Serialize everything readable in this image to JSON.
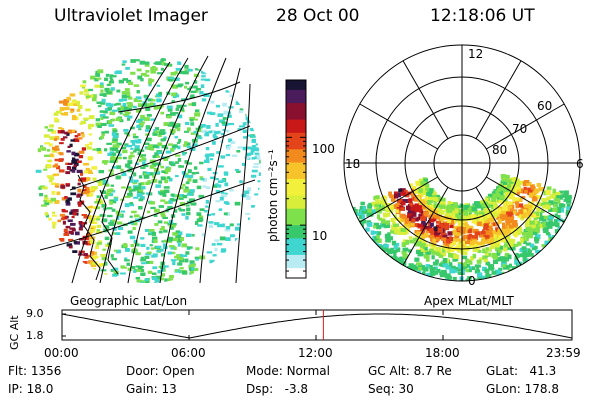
{
  "header": {
    "instrument": "Ultraviolet Imager",
    "date": "28 Oct 00",
    "time": "12:18:06 UT"
  },
  "colorbar": {
    "unit_label": "photon cm⁻²s⁻¹",
    "ticks": [
      {
        "label": "100",
        "value": 100
      },
      {
        "label": "10",
        "value": 10
      }
    ],
    "colors": [
      "#ffffff",
      "#b8ecf2",
      "#3fd6d0",
      "#36c86a",
      "#7ee04a",
      "#d8ee3a",
      "#f2f03a",
      "#f6c32a",
      "#f28a1e",
      "#e3441a",
      "#c81818",
      "#8a1030",
      "#4a1c5c",
      "#181434"
    ]
  },
  "panels": {
    "left_label": "Geographic Lat/Lon",
    "right_label": "Apex MLat/MLT"
  },
  "polar": {
    "mlt_labels": {
      "top": "12",
      "left": "18",
      "right": "6",
      "bottom": "0"
    },
    "lat_labels": [
      "60",
      "70",
      "80"
    ]
  },
  "altitude_plot": {
    "ylabel": "GC Alt",
    "yticks": [
      "9.0",
      "1.8"
    ],
    "xticks": [
      "00:00",
      "06:00",
      "12:00",
      "18:00",
      "23:59"
    ],
    "current_time_marker": "12:18"
  },
  "status": {
    "flt": {
      "label": "Flt:",
      "value": "1356"
    },
    "ip": {
      "label": "IP:",
      "value": "18.0"
    },
    "door": {
      "label": "Door:",
      "value": "Open"
    },
    "gain": {
      "label": "Gain:",
      "value": "13"
    },
    "mode": {
      "label": "Mode:",
      "value": "Normal"
    },
    "dsp": {
      "label": "Dsp:",
      "value": "-3.8"
    },
    "gcalt": {
      "label": "GC Alt:",
      "value": "8.7 Re"
    },
    "seq": {
      "label": "Seq:",
      "value": "30"
    },
    "glat": {
      "label": "GLat:",
      "value": "41.3"
    },
    "glon": {
      "label": "GLon:",
      "value": "178.8"
    }
  }
}
